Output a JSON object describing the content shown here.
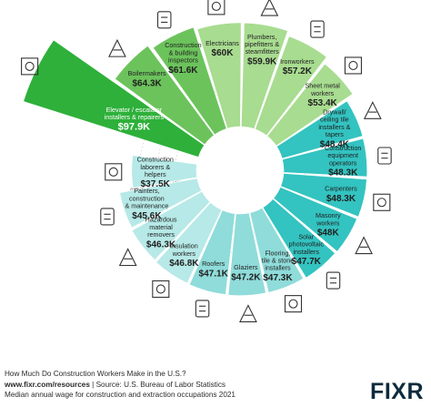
{
  "chart_data": {
    "type": "polar-bar",
    "title": "How Much Do Construction Workers Make in the U.S.?",
    "value_prefix": "$",
    "scale_labels": [
      "$25K",
      "$50K",
      "$75K"
    ],
    "categories": [
      "Elevator / escalator installers & repairers",
      "Boilermakers",
      "Construction & building inspectors",
      "Electricians",
      "Plumbers, pipefitters & steamfitters",
      "Ironworkers",
      "Sheet metal workers",
      "Drywall/ ceiling tile installers & tapers",
      "Construction equipment operators",
      "Carpenters",
      "Masonry workers",
      "Solar photovoltaic installers",
      "Flooring, tile & stone installers",
      "Glaziers",
      "Roofers",
      "Insulation workers",
      "Hazardous material removers",
      "Painters, construction & maintenance",
      "Construction laborers & helpers"
    ],
    "values": [
      97.9,
      64.3,
      61.6,
      60,
      59.9,
      57.2,
      53.4,
      48.4,
      48.3,
      48.3,
      48,
      47.7,
      47.3,
      47.2,
      47.1,
      46.8,
      46.3,
      45.6,
      37.5
    ],
    "value_labels": [
      "$97.9K",
      "$64.3K",
      "$61.6K",
      "$60K",
      "$59.9K",
      "$57.2K",
      "$53.4K",
      "$48.4K",
      "$48.3K",
      "$48.3K",
      "$48K",
      "$47.7K",
      "$47.3K",
      "$47.2K",
      "$47.1K",
      "$46.8K",
      "$46.3K",
      "$45.6K",
      "$37.5K"
    ],
    "colors": {
      "top": "#2eb03a",
      "high": "#6cc35c",
      "mid": "#a8dc90",
      "teal": "#33c3c0",
      "light_teal": "#8fdcda",
      "pale_teal": "#b6e9e7"
    }
  },
  "footer": {
    "question": "How Much Do Construction Workers Make in the U.S.?",
    "site": "www.fixr.com/resources",
    "source": " | Source: U.S. Bureau of Labor Statistics",
    "subtitle": "Median annual wage for construction and extraction occupations 2021"
  },
  "logo": {
    "text": "FIXR"
  }
}
